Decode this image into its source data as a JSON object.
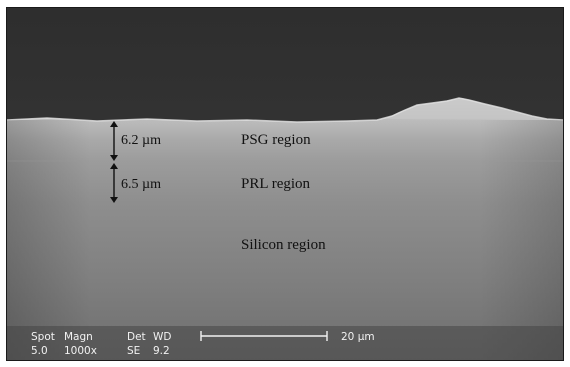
{
  "micrograph": {
    "layer_labels": {
      "psg": "PSG region",
      "prl": "PRL region",
      "silicon": "Silicon region"
    },
    "thickness": {
      "psg": "6.2 µm",
      "prl": "6.5 µm"
    },
    "info_bar": {
      "spot_header": "Spot",
      "magn_header": "Magn",
      "det_header": "Det",
      "wd_header": "WD",
      "spot_value": "5.0",
      "magn_value": "1000x",
      "det_value": "SE",
      "wd_value": "9.2",
      "scale_bar_label": "20 µm"
    }
  }
}
